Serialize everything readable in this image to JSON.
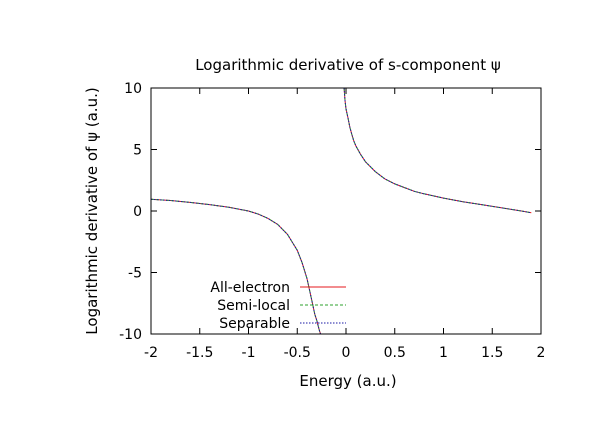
{
  "chart_data": {
    "type": "line",
    "title": "Logarithmic derivative of s-component ψ",
    "xlabel": "Energy (a.u.)",
    "ylabel": "Logarithmic derivative of ψ (a.u.)",
    "xlim": [
      -2,
      2
    ],
    "ylim": [
      -10,
      10
    ],
    "x_ticks": [
      "-2",
      "-1.5",
      "-1",
      "-0.5",
      "0",
      "0.5",
      "1",
      "1.5",
      "2"
    ],
    "y_ticks": [
      "-10",
      "-5",
      "0",
      "5",
      "10"
    ],
    "grid": false,
    "legend_position": "bottom-left",
    "colors": {
      "All-electron": "#e41a1c",
      "Semi-local": "#2ca02c",
      "Separable": "#1a1aa6"
    },
    "series": [
      {
        "name": "All-electron",
        "style": "solid",
        "segments": [
          {
            "x": [
              -2.0,
              -1.8,
              -1.6,
              -1.4,
              -1.2,
              -1.0,
              -0.9,
              -0.8,
              -0.7,
              -0.6,
              -0.5,
              -0.45,
              -0.4,
              -0.35,
              -0.32,
              -0.3,
              -0.28,
              -0.27,
              -0.26
            ],
            "y": [
              0.95,
              0.85,
              0.7,
              0.52,
              0.3,
              0.0,
              -0.25,
              -0.6,
              -1.1,
              -1.9,
              -3.2,
              -4.2,
              -5.5,
              -7.3,
              -8.4,
              -8.9,
              -9.5,
              -9.8,
              -10.0
            ]
          },
          {
            "x": [
              -0.02,
              -0.01,
              0.0,
              0.02,
              0.04,
              0.06,
              0.08,
              0.1,
              0.15,
              0.2,
              0.3,
              0.4,
              0.5,
              0.6,
              0.7,
              0.8,
              1.0,
              1.2,
              1.4,
              1.6,
              1.8,
              1.9
            ],
            "y": [
              10.0,
              9.0,
              8.3,
              7.6,
              6.8,
              6.2,
              5.7,
              5.3,
              4.6,
              4.0,
              3.2,
              2.6,
              2.2,
              1.9,
              1.6,
              1.4,
              1.05,
              0.75,
              0.5,
              0.25,
              0.0,
              -0.15
            ]
          }
        ]
      },
      {
        "name": "Semi-local",
        "style": "dashed",
        "segments": [
          {
            "x": [
              -2.0,
              -1.8,
              -1.6,
              -1.4,
              -1.2,
              -1.0,
              -0.9,
              -0.8,
              -0.7,
              -0.6,
              -0.5,
              -0.45,
              -0.4,
              -0.35,
              -0.32,
              -0.3,
              -0.28,
              -0.27,
              -0.26
            ],
            "y": [
              0.95,
              0.85,
              0.7,
              0.52,
              0.3,
              0.0,
              -0.25,
              -0.6,
              -1.1,
              -1.9,
              -3.2,
              -4.2,
              -5.5,
              -7.3,
              -8.4,
              -8.9,
              -9.5,
              -9.8,
              -10.0
            ]
          },
          {
            "x": [
              -0.02,
              -0.01,
              0.0,
              0.02,
              0.04,
              0.06,
              0.08,
              0.1,
              0.15,
              0.2,
              0.3,
              0.4,
              0.5,
              0.6,
              0.7,
              0.8,
              1.0,
              1.2,
              1.4,
              1.6,
              1.8,
              1.9
            ],
            "y": [
              10.0,
              9.0,
              8.3,
              7.6,
              6.8,
              6.2,
              5.7,
              5.3,
              4.6,
              4.0,
              3.2,
              2.6,
              2.2,
              1.9,
              1.6,
              1.4,
              1.05,
              0.75,
              0.5,
              0.25,
              0.0,
              -0.15
            ]
          }
        ]
      },
      {
        "name": "Separable",
        "style": "dotted",
        "segments": [
          {
            "x": [
              -2.0,
              -1.8,
              -1.6,
              -1.4,
              -1.2,
              -1.0,
              -0.9,
              -0.8,
              -0.7,
              -0.6,
              -0.5,
              -0.45,
              -0.4,
              -0.35,
              -0.32,
              -0.3,
              -0.28,
              -0.27,
              -0.26
            ],
            "y": [
              0.95,
              0.85,
              0.7,
              0.52,
              0.3,
              0.0,
              -0.25,
              -0.6,
              -1.1,
              -1.9,
              -3.2,
              -4.2,
              -5.5,
              -7.3,
              -8.4,
              -8.9,
              -9.5,
              -9.8,
              -10.0
            ]
          },
          {
            "x": [
              -0.02,
              -0.01,
              0.0,
              0.02,
              0.04,
              0.06,
              0.08,
              0.1,
              0.15,
              0.2,
              0.3,
              0.4,
              0.5,
              0.6,
              0.7,
              0.8,
              1.0,
              1.2,
              1.4,
              1.6,
              1.8,
              1.9
            ],
            "y": [
              10.0,
              9.0,
              8.3,
              7.6,
              6.8,
              6.2,
              5.7,
              5.3,
              4.6,
              4.0,
              3.2,
              2.6,
              2.2,
              1.9,
              1.6,
              1.4,
              1.05,
              0.75,
              0.5,
              0.25,
              0.0,
              -0.15
            ]
          }
        ]
      }
    ]
  }
}
